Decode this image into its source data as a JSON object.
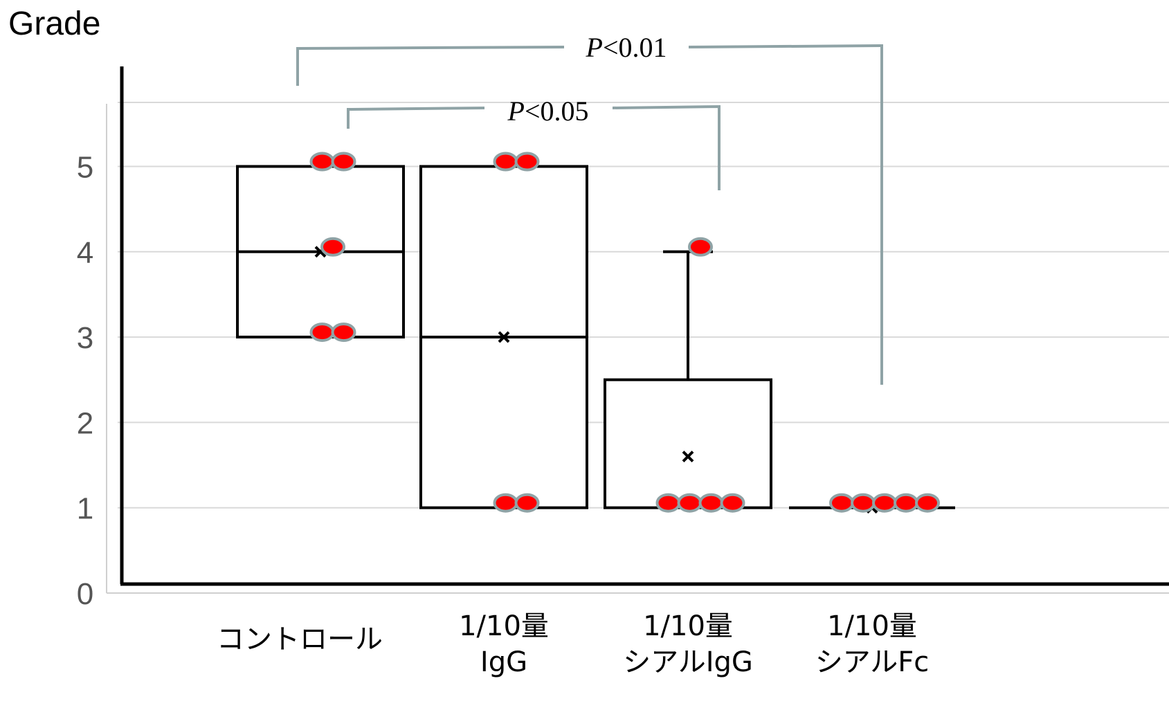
{
  "chart_data": {
    "type": "boxplot",
    "title": "",
    "ylabel": "Grade",
    "xlabel": "",
    "ylim": [
      0,
      5.75
    ],
    "yticks": [
      "0",
      "1",
      "2",
      "3",
      "4",
      "5"
    ],
    "grid": true,
    "categories": [
      {
        "lines": [
          "コントロール"
        ]
      },
      {
        "lines": [
          "1/10量",
          "IgG"
        ]
      },
      {
        "lines": [
          "1/10量",
          "シアルIgG"
        ]
      },
      {
        "lines": [
          "1/10量",
          "シアルFc"
        ]
      }
    ],
    "boxes": [
      {
        "q1": 3,
        "median": 4,
        "q3": 5,
        "whisker_low": 3,
        "whisker_high": 5,
        "mean": 4,
        "points": [
          5,
          5,
          4,
          3,
          3
        ]
      },
      {
        "q1": 1,
        "median": 3,
        "q3": 5,
        "whisker_low": 1,
        "whisker_high": 5,
        "mean": 3,
        "points": [
          5,
          5,
          1,
          1
        ]
      },
      {
        "q1": 1,
        "median": 1,
        "q3": 2.5,
        "whisker_low": 1,
        "whisker_high": 4,
        "mean": 1.6,
        "points": [
          4,
          1,
          1,
          1,
          1
        ]
      },
      {
        "q1": 1,
        "median": 1,
        "q3": 1,
        "whisker_low": 1,
        "whisker_high": 1,
        "mean": 1,
        "points": [
          1,
          1,
          1,
          1,
          1
        ]
      }
    ],
    "annotations": [
      {
        "from": 0,
        "to": 3,
        "text_italic": "P",
        "text_rest": "<0.01"
      },
      {
        "from": 0,
        "to": 2,
        "text_italic": "P",
        "text_rest": "<0.05"
      }
    ]
  }
}
